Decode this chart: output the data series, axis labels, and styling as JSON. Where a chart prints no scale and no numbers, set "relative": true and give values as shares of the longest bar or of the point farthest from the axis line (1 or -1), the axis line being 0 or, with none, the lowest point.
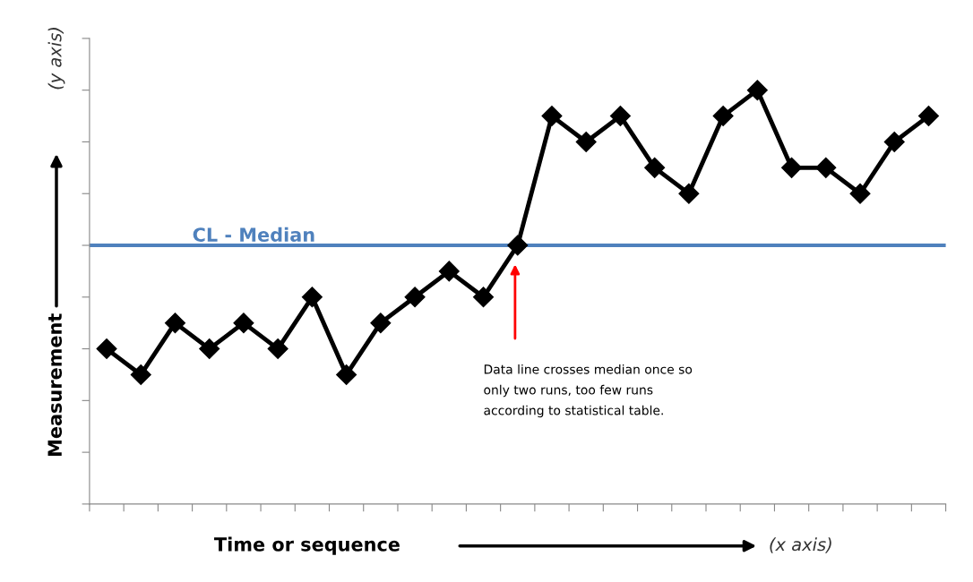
{
  "chart_data": {
    "type": "line",
    "relative": true,
    "xlabel": "Time or sequence",
    "ylabel": "Measurement",
    "categories": [
      null,
      null,
      null,
      null,
      null,
      null,
      null,
      null,
      null,
      null,
      null,
      null,
      null,
      null,
      null,
      null,
      null,
      null,
      null,
      null,
      null,
      null,
      null,
      null,
      null
    ],
    "series": [
      {
        "color": "#000000",
        "values": [
          0.375,
          0.3125,
          0.4375,
          0.375,
          0.4375,
          0.375,
          0.5,
          0.3125,
          0.4375,
          0.5,
          0.5625,
          0.5,
          0.625,
          0.9375,
          0.875,
          0.9375,
          0.8125,
          0.75,
          0.9375,
          1,
          0.8125,
          0.8125,
          0.75,
          0.875,
          0.9375
        ]
      }
    ],
    "marker": "diamond",
    "line_style": "solid",
    "grid": false,
    "legend": false,
    "ref_lines": [
      {
        "axis": "y",
        "value": 0.625,
        "label": "CL - Median",
        "color": "#4f81bd"
      }
    ],
    "annotations": [
      "(y axis)",
      "(x axis)",
      "Data line crosses median once so\nonly two runs, too few runs\naccording to statistical table."
    ]
  }
}
